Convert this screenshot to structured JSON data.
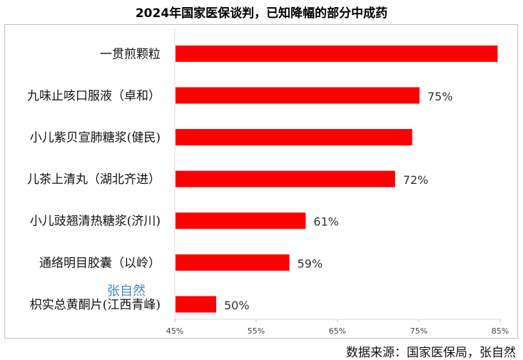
{
  "chart_data": {
    "type": "bar",
    "orientation": "horizontal",
    "title": "2024年国家医保谈判，已知降幅的部分中成药",
    "categories": [
      "一贯煎颗粒",
      "九味止咳口服液（卓和）",
      "小儿紫贝宣肺糖浆(健民)",
      "儿茶上清丸（湖北齐进）",
      "小儿豉翘清热糖浆(济川)",
      "通络明目胶囊（以岭）",
      "枳实总黄酮片(江西青峰)"
    ],
    "values": [
      84.6,
      75,
      74.1,
      72,
      61,
      59,
      50
    ],
    "data_labels": [
      "",
      "75%",
      "",
      "72%",
      "61%",
      "59%",
      "50%"
    ],
    "xlim": [
      45,
      85
    ],
    "x_ticks": [
      "45%",
      "55%",
      "65%",
      "75%",
      "85%"
    ],
    "x_tick_values": [
      45,
      55,
      65,
      75,
      85
    ],
    "bar_color": "#ff0000",
    "grid": false,
    "legend": "none",
    "source": "数据来源：国家医保局，张自然",
    "watermark": "张自然"
  }
}
